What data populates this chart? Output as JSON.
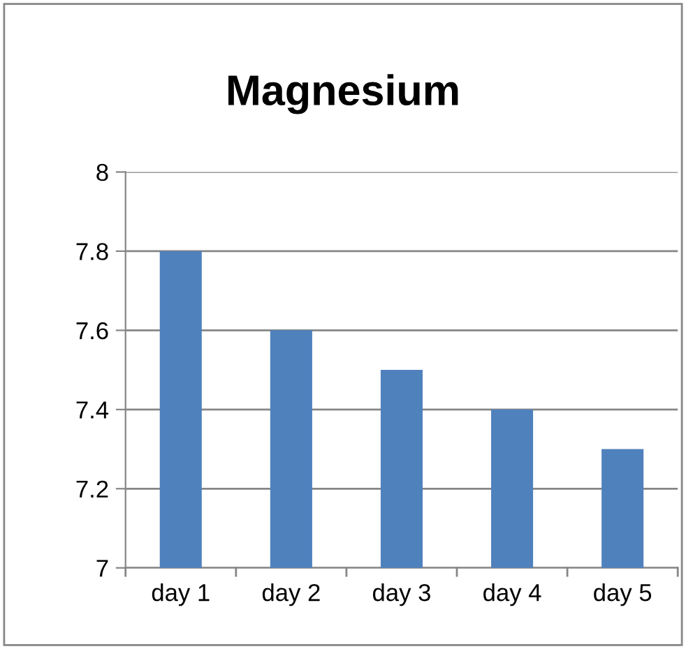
{
  "chart_data": {
    "type": "bar",
    "title": "Magnesium",
    "categories": [
      "day 1",
      "day 2",
      "day 3",
      "day 4",
      "day 5"
    ],
    "values": [
      7.8,
      7.6,
      7.5,
      7.4,
      7.3
    ],
    "color": "#4f81bd",
    "ylim": [
      7,
      8
    ],
    "yticks": [
      7,
      7.2,
      7.4,
      7.6,
      7.8,
      8
    ],
    "grid": "y",
    "legend": false
  }
}
